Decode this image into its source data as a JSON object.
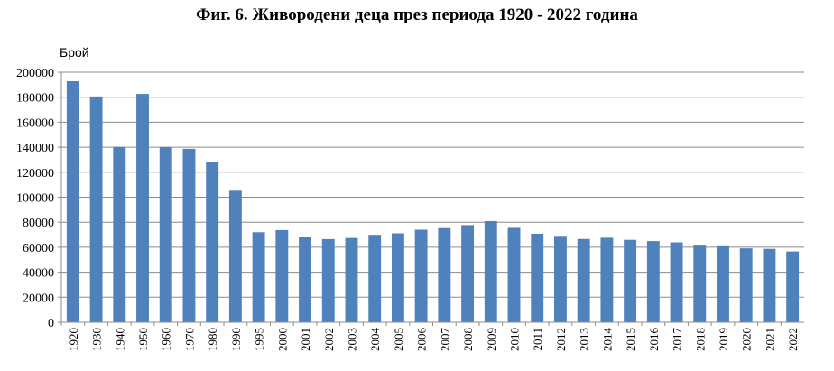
{
  "chart_data": {
    "type": "bar",
    "title": "Фиг. 6. Живородени деца през периода 1920 - 2022 година",
    "ylabel": "Брой",
    "xlabel": "",
    "ylim": [
      0,
      200000
    ],
    "ytick_step": 20000,
    "ytick_labels": [
      "0",
      "20000",
      "40000",
      "60000",
      "80000",
      "100000",
      "120000",
      "140000",
      "160000",
      "180000",
      "200000"
    ],
    "grid": true,
    "bar_color": "#4F81BD",
    "categories": [
      "1920",
      "1930",
      "1940",
      "1950",
      "1960",
      "1970",
      "1980",
      "1990",
      "1995",
      "2000",
      "2001",
      "2002",
      "2003",
      "2004",
      "2005",
      "2006",
      "2007",
      "2008",
      "2009",
      "2010",
      "2011",
      "2012",
      "2013",
      "2014",
      "2015",
      "2016",
      "2017",
      "2018",
      "2019",
      "2020",
      "2021",
      "2022"
    ],
    "values": [
      192800,
      180600,
      140200,
      182600,
      140100,
      138700,
      128200,
      105200,
      72000,
      73700,
      68200,
      66500,
      67400,
      69900,
      71100,
      74000,
      75300,
      77700,
      80900,
      75500,
      70800,
      69100,
      66600,
      67600,
      65900,
      64900,
      63900,
      62000,
      61500,
      59100,
      58700,
      56600
    ]
  }
}
